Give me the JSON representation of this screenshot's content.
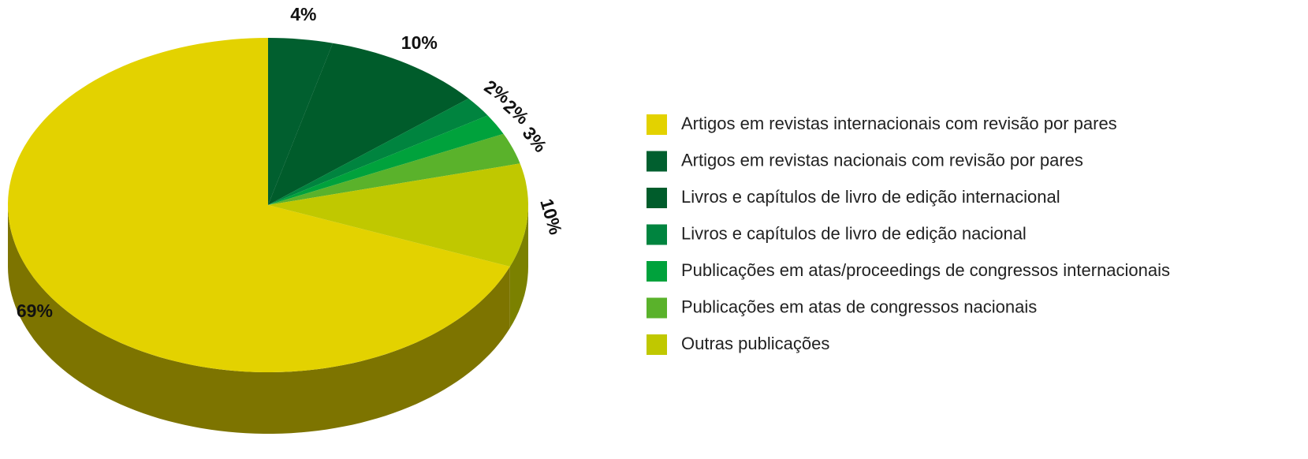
{
  "chart_data": {
    "type": "pie",
    "categories": [
      "Artigos em revistas internacionais com revisão por pares",
      "Artigos em revistas nacionais com revisão por pares",
      "Livros e capítulos de livro de edição internacional",
      "Livros e capítulos de livro de edição nacional",
      "Publicações em atas/proceedings de congressos internacionais",
      "Publicações em atas de congressos nacionais",
      "Outras publicações"
    ],
    "values": [
      69,
      4,
      10,
      2,
      2,
      3,
      10
    ],
    "value_labels": [
      "69%",
      "4%",
      "10%",
      "2%",
      "2%",
      "3%",
      "10%"
    ],
    "colors": [
      "#e3d200",
      "#015f2f",
      "#005c2b",
      "#00843f",
      "#00a23c",
      "#5ab22b",
      "#c0c800"
    ],
    "legend": "right"
  }
}
